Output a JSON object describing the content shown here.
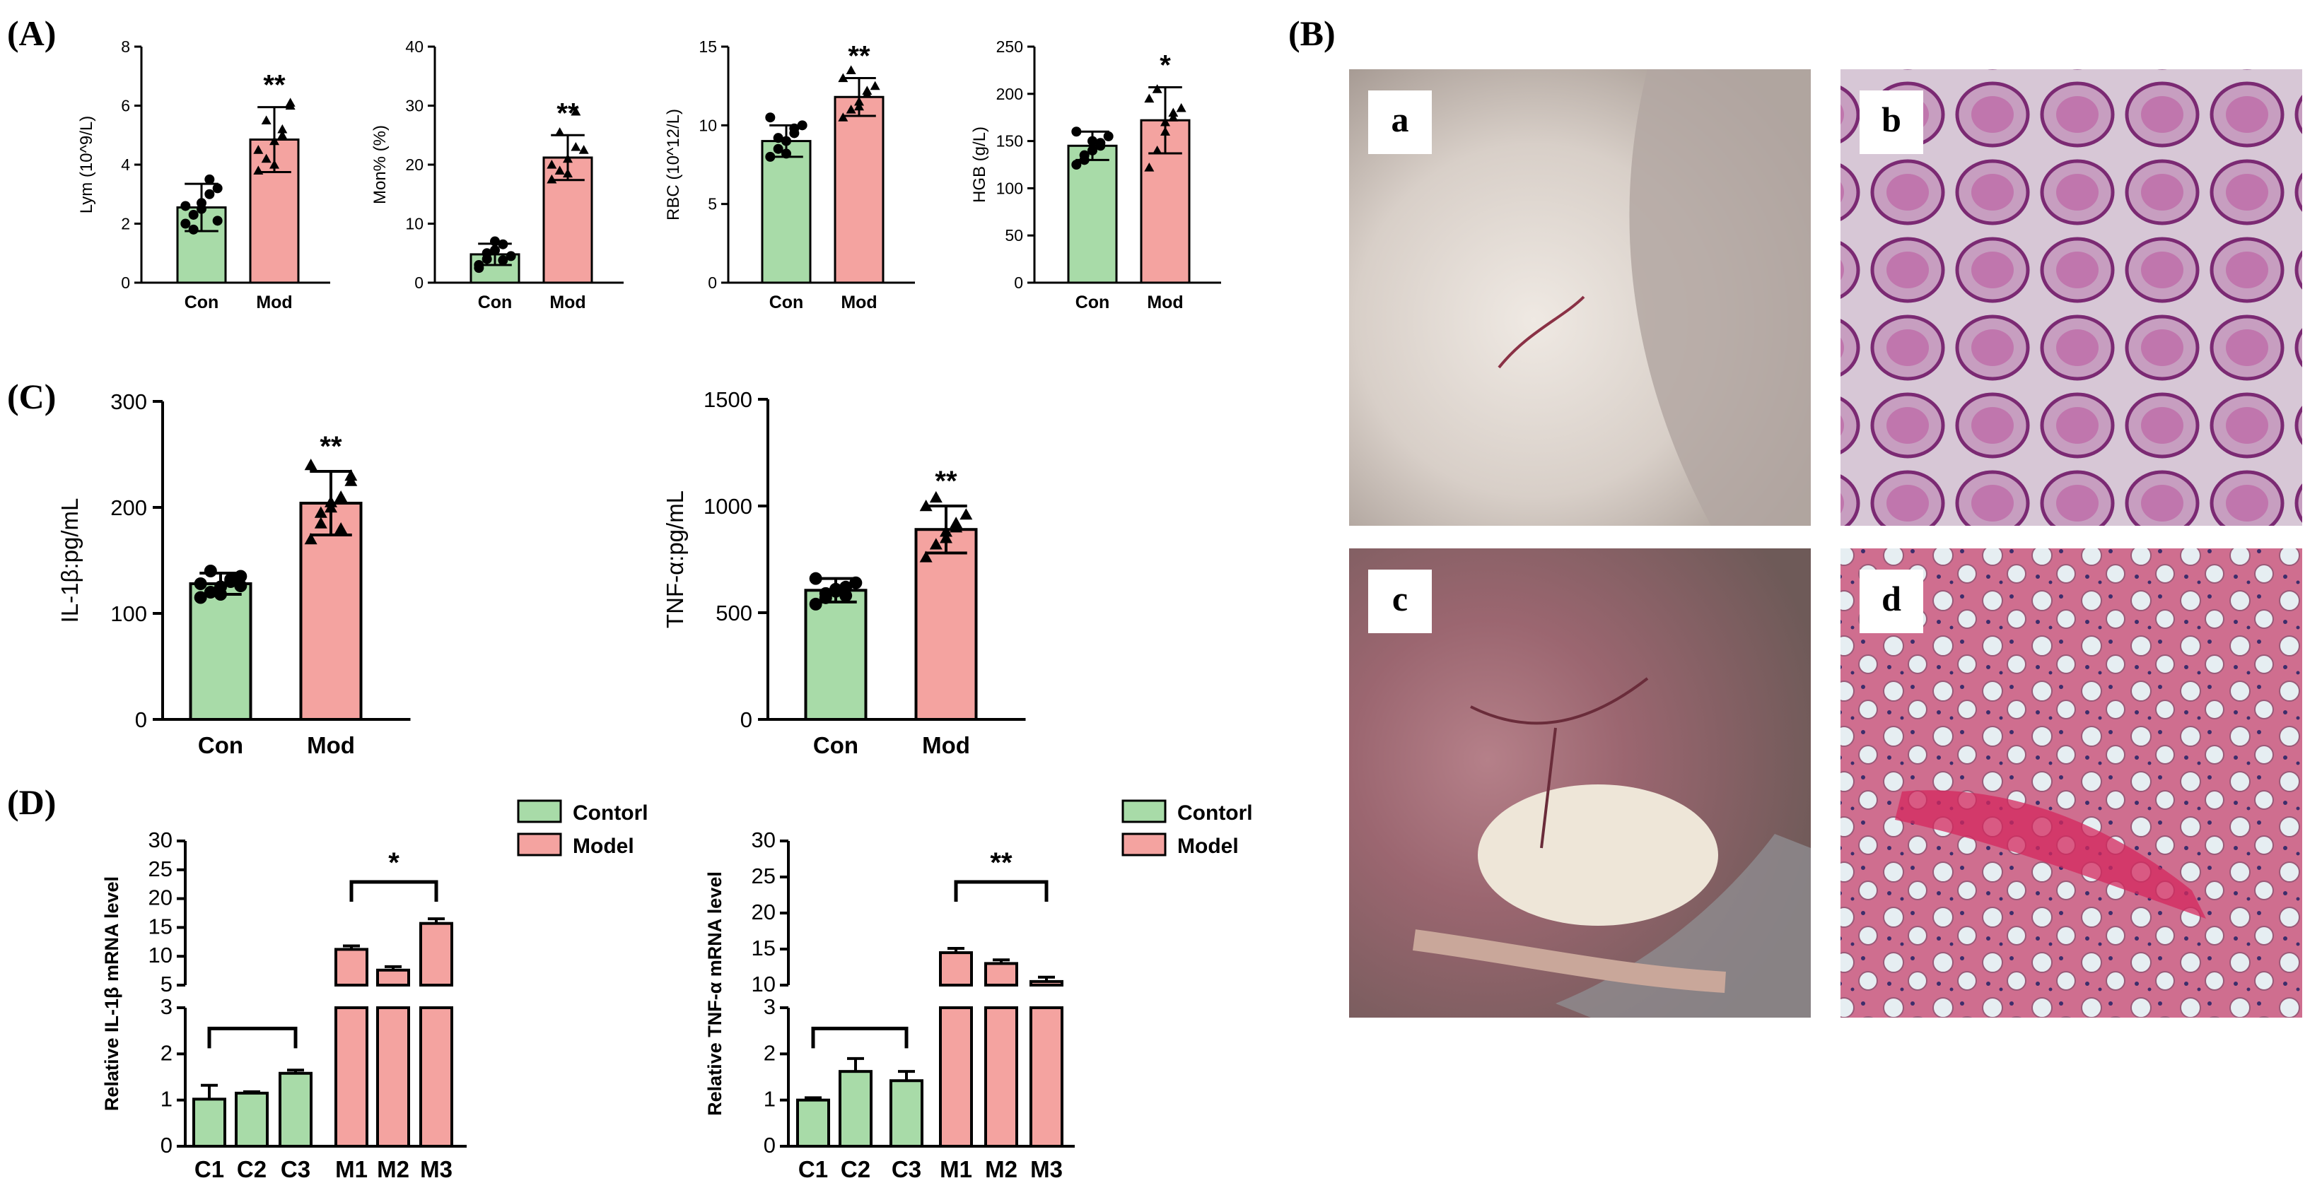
{
  "panels": {
    "A": "(A)",
    "B": "(B)",
    "C": "(C)",
    "D": "(D)"
  },
  "colors": {
    "control": "#a8dba8",
    "model": "#f4a3a0",
    "outline": "#000000"
  },
  "photos": {
    "labels": [
      "a",
      "b",
      "c",
      "d"
    ],
    "a_tone": "#cfc4bd",
    "b_tone": "#c98fb3",
    "c_tone": "#8b5f65",
    "d_tone": "#c7708f"
  },
  "legend": {
    "control": "Contorl",
    "model": "Model"
  },
  "chart_data": [
    {
      "id": "lym",
      "type": "bar",
      "categories": [
        "Con",
        "Mod"
      ],
      "values": [
        2.55,
        4.85
      ],
      "errors": [
        0.8,
        1.1
      ],
      "points": [
        [
          2.0,
          2.3,
          2.7,
          3.0,
          3.2,
          2.6,
          1.8,
          2.5,
          3.5,
          2.1
        ],
        [
          3.8,
          4.2,
          4.8,
          5.2,
          6.1,
          4.5,
          5.5,
          4.0,
          5.0,
          6.0
        ]
      ],
      "ylabel": "Lym (10^9/L)",
      "ylim": [
        0,
        8
      ],
      "yticks": [
        0,
        2,
        4,
        6,
        8
      ],
      "significance": "**"
    },
    {
      "id": "mon",
      "type": "bar",
      "categories": [
        "Con",
        "Mod"
      ],
      "values": [
        4.8,
        21.2
      ],
      "errors": [
        1.8,
        3.8
      ],
      "points": [
        [
          3.0,
          4.0,
          5.5,
          6.5,
          4.5,
          2.5,
          5.0,
          7.0,
          3.8
        ],
        [
          17.5,
          19.0,
          21.0,
          23.0,
          22.5,
          20.0,
          25.5,
          18.5,
          29.0
        ]
      ],
      "ylabel": "Mon% (%)",
      "ylim": [
        0,
        40
      ],
      "yticks": [
        0,
        10,
        20,
        30,
        40
      ],
      "significance": "**"
    },
    {
      "id": "rbc",
      "type": "bar",
      "categories": [
        "Con",
        "Mod"
      ],
      "values": [
        9.0,
        11.8
      ],
      "errors": [
        1.0,
        1.2
      ],
      "points": [
        [
          8.0,
          8.5,
          9.0,
          9.5,
          10.0,
          10.5,
          9.2,
          8.2,
          9.8
        ],
        [
          10.5,
          11.0,
          11.5,
          12.0,
          12.5,
          13.0,
          13.5,
          11.2,
          12.2
        ]
      ],
      "ylabel": "RBC (10^12/L)",
      "ylim": [
        0,
        15
      ],
      "yticks": [
        0,
        5,
        10,
        15
      ],
      "significance": "**"
    },
    {
      "id": "hgb",
      "type": "bar",
      "categories": [
        "Con",
        "Mod"
      ],
      "values": [
        145,
        172
      ],
      "errors": [
        15,
        35
      ],
      "points": [
        [
          125,
          135,
          140,
          148,
          155,
          160,
          130,
          150,
          145
        ],
        [
          122,
          140,
          160,
          175,
          185,
          195,
          205,
          170,
          180
        ]
      ],
      "ylabel": "HGB (g/L)",
      "ylim": [
        0,
        250
      ],
      "yticks": [
        0,
        50,
        100,
        150,
        200,
        250
      ],
      "significance": "*"
    },
    {
      "id": "il1b",
      "type": "bar",
      "categories": [
        "Con",
        "Mod"
      ],
      "values": [
        128,
        204
      ],
      "errors": [
        10,
        30
      ],
      "points": [
        [
          115,
          120,
          125,
          130,
          135,
          128,
          140,
          118,
          132,
          126
        ],
        [
          170,
          185,
          200,
          210,
          225,
          240,
          195,
          205,
          180,
          230
        ]
      ],
      "ylabel": "IL-1β:pg/mL",
      "ylim": [
        0,
        300
      ],
      "yticks": [
        0,
        100,
        200,
        300
      ],
      "significance": "**"
    },
    {
      "id": "tnfa",
      "type": "bar",
      "categories": [
        "Con",
        "Mod"
      ],
      "values": [
        605,
        890
      ],
      "errors": [
        55,
        110
      ],
      "points": [
        [
          540,
          570,
          600,
          620,
          640,
          660,
          590,
          610,
          580
        ],
        [
          760,
          820,
          880,
          920,
          960,
          1000,
          1040,
          850,
          900
        ]
      ],
      "ylabel": "TNF-α:pg/mL",
      "ylim": [
        0,
        1500
      ],
      "yticks": [
        0,
        500,
        1000,
        1500
      ],
      "significance": "**"
    },
    {
      "id": "il1b_mrna",
      "type": "bar",
      "categories": [
        "C1",
        "C2",
        "C3",
        "M1",
        "M2",
        "M3"
      ],
      "series": [
        {
          "name": "Contorl",
          "values": [
            1.02,
            1.15,
            1.58,
            null,
            null,
            null
          ]
        },
        {
          "name": "Model",
          "values": [
            null,
            null,
            null,
            11.2,
            7.6,
            15.7
          ]
        }
      ],
      "errors": [
        0.3,
        0.03,
        0.07,
        0.6,
        0.6,
        0.8
      ],
      "ylabel": "Relative IL-1β mRNA level",
      "axis_break": {
        "lower": [
          0,
          3
        ],
        "upper": [
          5,
          30
        ]
      },
      "yticks_lower": [
        0,
        1,
        2,
        3
      ],
      "yticks_upper": [
        5,
        10,
        15,
        20,
        25,
        30
      ],
      "significance": "*"
    },
    {
      "id": "tnfa_mrna",
      "type": "bar",
      "categories": [
        "C1",
        "C2",
        "C3",
        "M1",
        "M2",
        "M3"
      ],
      "series": [
        {
          "name": "Contorl",
          "values": [
            1.0,
            1.62,
            1.42,
            null,
            null,
            null
          ]
        },
        {
          "name": "Model",
          "values": [
            null,
            null,
            null,
            14.5,
            13.0,
            10.5
          ]
        }
      ],
      "errors": [
        0.05,
        0.28,
        0.2,
        0.6,
        0.5,
        0.6
      ],
      "ylabel": "Relative TNF-α mRNA level",
      "axis_break": {
        "lower": [
          0,
          3
        ],
        "upper": [
          10,
          30
        ]
      },
      "yticks_lower": [
        0,
        1,
        2,
        3
      ],
      "yticks_upper": [
        10,
        15,
        20,
        25,
        30
      ],
      "significance": "**"
    }
  ]
}
